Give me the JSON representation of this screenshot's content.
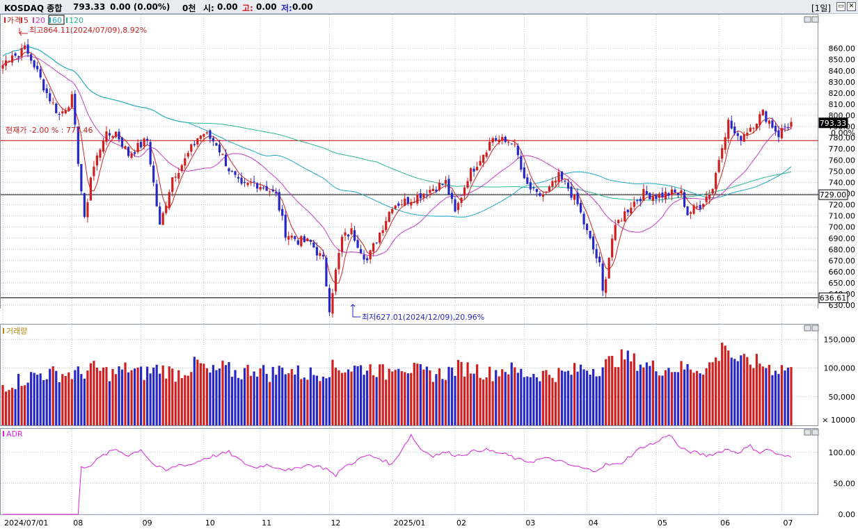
{
  "header": {
    "symbol": "KOSDAQ 종합",
    "price": "793.33",
    "change": "0.00 (0.00%)",
    "volume": "0천",
    "open_label": "시:",
    "open": "0.00",
    "high_label": "고:",
    "high": "0.00",
    "low_label": "저:",
    "low": "0.00",
    "period": "[1일]",
    "icons": [
      "restore-icon",
      "close-icon"
    ]
  },
  "colors": {
    "up": "#d11f1f",
    "down": "#2727c8",
    "ma5": "#d22020",
    "ma20": "#c83cc8",
    "ma60": "#1ea8c8",
    "ma120": "#2ab88e",
    "adr": "#e020e0",
    "ref_line": "#c00000",
    "grid": "#b8c0d0"
  },
  "price_panel": {
    "legend": [
      {
        "label": "가격",
        "color": "#d11f1f"
      },
      {
        "label": "5",
        "color": "#d22020"
      },
      {
        "label": "20",
        "color": "#c83cc8"
      },
      {
        "label": "60",
        "color": "#1ea8c8",
        "boxed": true
      },
      {
        "label": "120",
        "color": "#2ab88e"
      }
    ],
    "high_note": "최고864.11(2024/07/09),8.92%",
    "low_note": "최저627.01(2024/12/09),20.96%",
    "current_note": "현재가 -2.00 % : 777.46",
    "current_badge": "793.33",
    "current_pct": "0.00%",
    "line1_badge": "729.00",
    "line2_badge": "636.61"
  },
  "volume_panel": {
    "title": "거래량",
    "unit_label": "× 10000"
  },
  "adr_panel": {
    "title": "ADR"
  },
  "chart_data": {
    "type": "candlestick",
    "ylim": [
      627,
      866
    ],
    "y_ticks": [
      630,
      640,
      650,
      660,
      670,
      680,
      690,
      700,
      710,
      720,
      730,
      740,
      750,
      760,
      770,
      780,
      790,
      800,
      810,
      820,
      830,
      840,
      850,
      860
    ],
    "x_labels": [
      "2024/07/01",
      "08",
      "09",
      "10",
      "11",
      "12",
      "2025/01",
      "02",
      "03",
      "04",
      "05",
      "06",
      "07"
    ],
    "x_label_days": [
      0,
      22,
      44,
      64,
      82,
      104,
      124,
      144,
      166,
      186,
      208,
      228,
      248
    ],
    "anchors": [
      [
        0,
        845
      ],
      [
        3,
        856
      ],
      [
        5,
        852
      ],
      [
        6,
        864
      ],
      [
        10,
        845
      ],
      [
        14,
        820
      ],
      [
        18,
        800
      ],
      [
        22,
        815
      ],
      [
        26,
        705
      ],
      [
        28,
        745
      ],
      [
        32,
        780
      ],
      [
        36,
        785
      ],
      [
        40,
        765
      ],
      [
        46,
        778
      ],
      [
        50,
        700
      ],
      [
        54,
        745
      ],
      [
        58,
        760
      ],
      [
        62,
        780
      ],
      [
        64,
        784
      ],
      [
        68,
        775
      ],
      [
        72,
        752
      ],
      [
        76,
        735
      ],
      [
        80,
        740
      ],
      [
        84,
        735
      ],
      [
        87,
        728
      ],
      [
        90,
        695
      ],
      [
        94,
        688
      ],
      [
        98,
        686
      ],
      [
        102,
        670
      ],
      [
        104,
        628
      ],
      [
        106,
        660
      ],
      [
        108,
        690
      ],
      [
        111,
        696
      ],
      [
        116,
        670
      ],
      [
        120,
        695
      ],
      [
        124,
        720
      ],
      [
        128,
        723
      ],
      [
        132,
        728
      ],
      [
        137,
        735
      ],
      [
        141,
        740
      ],
      [
        144,
        712
      ],
      [
        148,
        745
      ],
      [
        152,
        762
      ],
      [
        156,
        780
      ],
      [
        160,
        776
      ],
      [
        162,
        778
      ],
      [
        164,
        763
      ],
      [
        166,
        740
      ],
      [
        170,
        728
      ],
      [
        173,
        730
      ],
      [
        177,
        745
      ],
      [
        180,
        735
      ],
      [
        183,
        720
      ],
      [
        186,
        695
      ],
      [
        190,
        665
      ],
      [
        191,
        641
      ],
      [
        194,
        690
      ],
      [
        196,
        705
      ],
      [
        200,
        720
      ],
      [
        204,
        730
      ],
      [
        208,
        728
      ],
      [
        212,
        730
      ],
      [
        216,
        730
      ],
      [
        218,
        712
      ],
      [
        222,
        720
      ],
      [
        226,
        735
      ],
      [
        229,
        775
      ],
      [
        231,
        794
      ],
      [
        234,
        778
      ],
      [
        236,
        784
      ],
      [
        239,
        793
      ],
      [
        242,
        802
      ],
      [
        244,
        795
      ],
      [
        247,
        783
      ],
      [
        249,
        790
      ],
      [
        251,
        793
      ]
    ],
    "ma_periods": [
      5,
      20,
      60,
      120
    ],
    "volume_ylim": [
      0,
      16
    ],
    "volume_ticks": [
      50000,
      100000,
      150000
    ],
    "volume_tick_labels": [
      "50,000",
      "100,000",
      "150,000"
    ],
    "volume_anchors": [
      [
        0,
        7
      ],
      [
        6,
        8
      ],
      [
        12,
        9
      ],
      [
        20,
        9
      ],
      [
        25,
        9
      ],
      [
        28,
        10
      ],
      [
        35,
        9
      ],
      [
        40,
        10
      ],
      [
        44,
        9
      ],
      [
        50,
        10
      ],
      [
        55,
        9
      ],
      [
        60,
        10
      ],
      [
        62,
        11
      ],
      [
        66,
        9
      ],
      [
        70,
        10
      ],
      [
        75,
        9
      ],
      [
        80,
        10
      ],
      [
        85,
        9
      ],
      [
        90,
        10
      ],
      [
        95,
        9
      ],
      [
        100,
        9
      ],
      [
        105,
        10
      ],
      [
        110,
        10
      ],
      [
        115,
        10
      ],
      [
        118,
        10
      ],
      [
        122,
        9
      ],
      [
        125,
        11
      ],
      [
        129,
        10
      ],
      [
        134,
        9
      ],
      [
        140,
        9
      ],
      [
        145,
        10
      ],
      [
        150,
        10
      ],
      [
        155,
        9
      ],
      [
        160,
        10
      ],
      [
        166,
        9
      ],
      [
        170,
        9
      ],
      [
        175,
        9
      ],
      [
        180,
        9
      ],
      [
        184,
        10
      ],
      [
        188,
        10
      ],
      [
        190,
        10
      ],
      [
        193,
        11
      ],
      [
        198,
        12
      ],
      [
        202,
        11
      ],
      [
        208,
        10
      ],
      [
        212,
        10
      ],
      [
        216,
        10
      ],
      [
        220,
        10
      ],
      [
        224,
        10
      ],
      [
        228,
        12
      ],
      [
        230,
        15
      ],
      [
        232,
        12
      ],
      [
        236,
        11
      ],
      [
        240,
        11
      ],
      [
        245,
        10
      ],
      [
        248,
        10
      ],
      [
        251,
        10
      ]
    ],
    "adr_ylim": [
      0,
      130
    ],
    "adr_ticks": [
      0,
      50,
      100
    ],
    "adr_tick_labels": [
      "0.00",
      "50.00",
      "100.00"
    ],
    "adr_anchors": [
      [
        0,
        0
      ],
      [
        24,
        0
      ],
      [
        25,
        75
      ],
      [
        28,
        80
      ],
      [
        32,
        95
      ],
      [
        36,
        105
      ],
      [
        40,
        95
      ],
      [
        44,
        105
      ],
      [
        48,
        80
      ],
      [
        52,
        70
      ],
      [
        56,
        80
      ],
      [
        60,
        80
      ],
      [
        64,
        90
      ],
      [
        68,
        95
      ],
      [
        72,
        100
      ],
      [
        76,
        85
      ],
      [
        80,
        75
      ],
      [
        84,
        80
      ],
      [
        88,
        75
      ],
      [
        92,
        70
      ],
      [
        96,
        80
      ],
      [
        100,
        78
      ],
      [
        104,
        72
      ],
      [
        106,
        60
      ],
      [
        108,
        75
      ],
      [
        112,
        85
      ],
      [
        116,
        95
      ],
      [
        120,
        90
      ],
      [
        124,
        80
      ],
      [
        127,
        105
      ],
      [
        130,
        128
      ],
      [
        133,
        105
      ],
      [
        137,
        95
      ],
      [
        141,
        100
      ],
      [
        145,
        95
      ],
      [
        149,
        100
      ],
      [
        153,
        105
      ],
      [
        157,
        100
      ],
      [
        161,
        95
      ],
      [
        164,
        88
      ],
      [
        168,
        85
      ],
      [
        172,
        90
      ],
      [
        176,
        88
      ],
      [
        180,
        80
      ],
      [
        184,
        75
      ],
      [
        188,
        70
      ],
      [
        192,
        80
      ],
      [
        196,
        80
      ],
      [
        200,
        95
      ],
      [
        204,
        110
      ],
      [
        208,
        115
      ],
      [
        212,
        130
      ],
      [
        216,
        105
      ],
      [
        220,
        100
      ],
      [
        224,
        95
      ],
      [
        228,
        100
      ],
      [
        230,
        105
      ],
      [
        234,
        100
      ],
      [
        238,
        110
      ],
      [
        241,
        100
      ],
      [
        244,
        105
      ],
      [
        247,
        95
      ],
      [
        251,
        92
      ]
    ]
  }
}
